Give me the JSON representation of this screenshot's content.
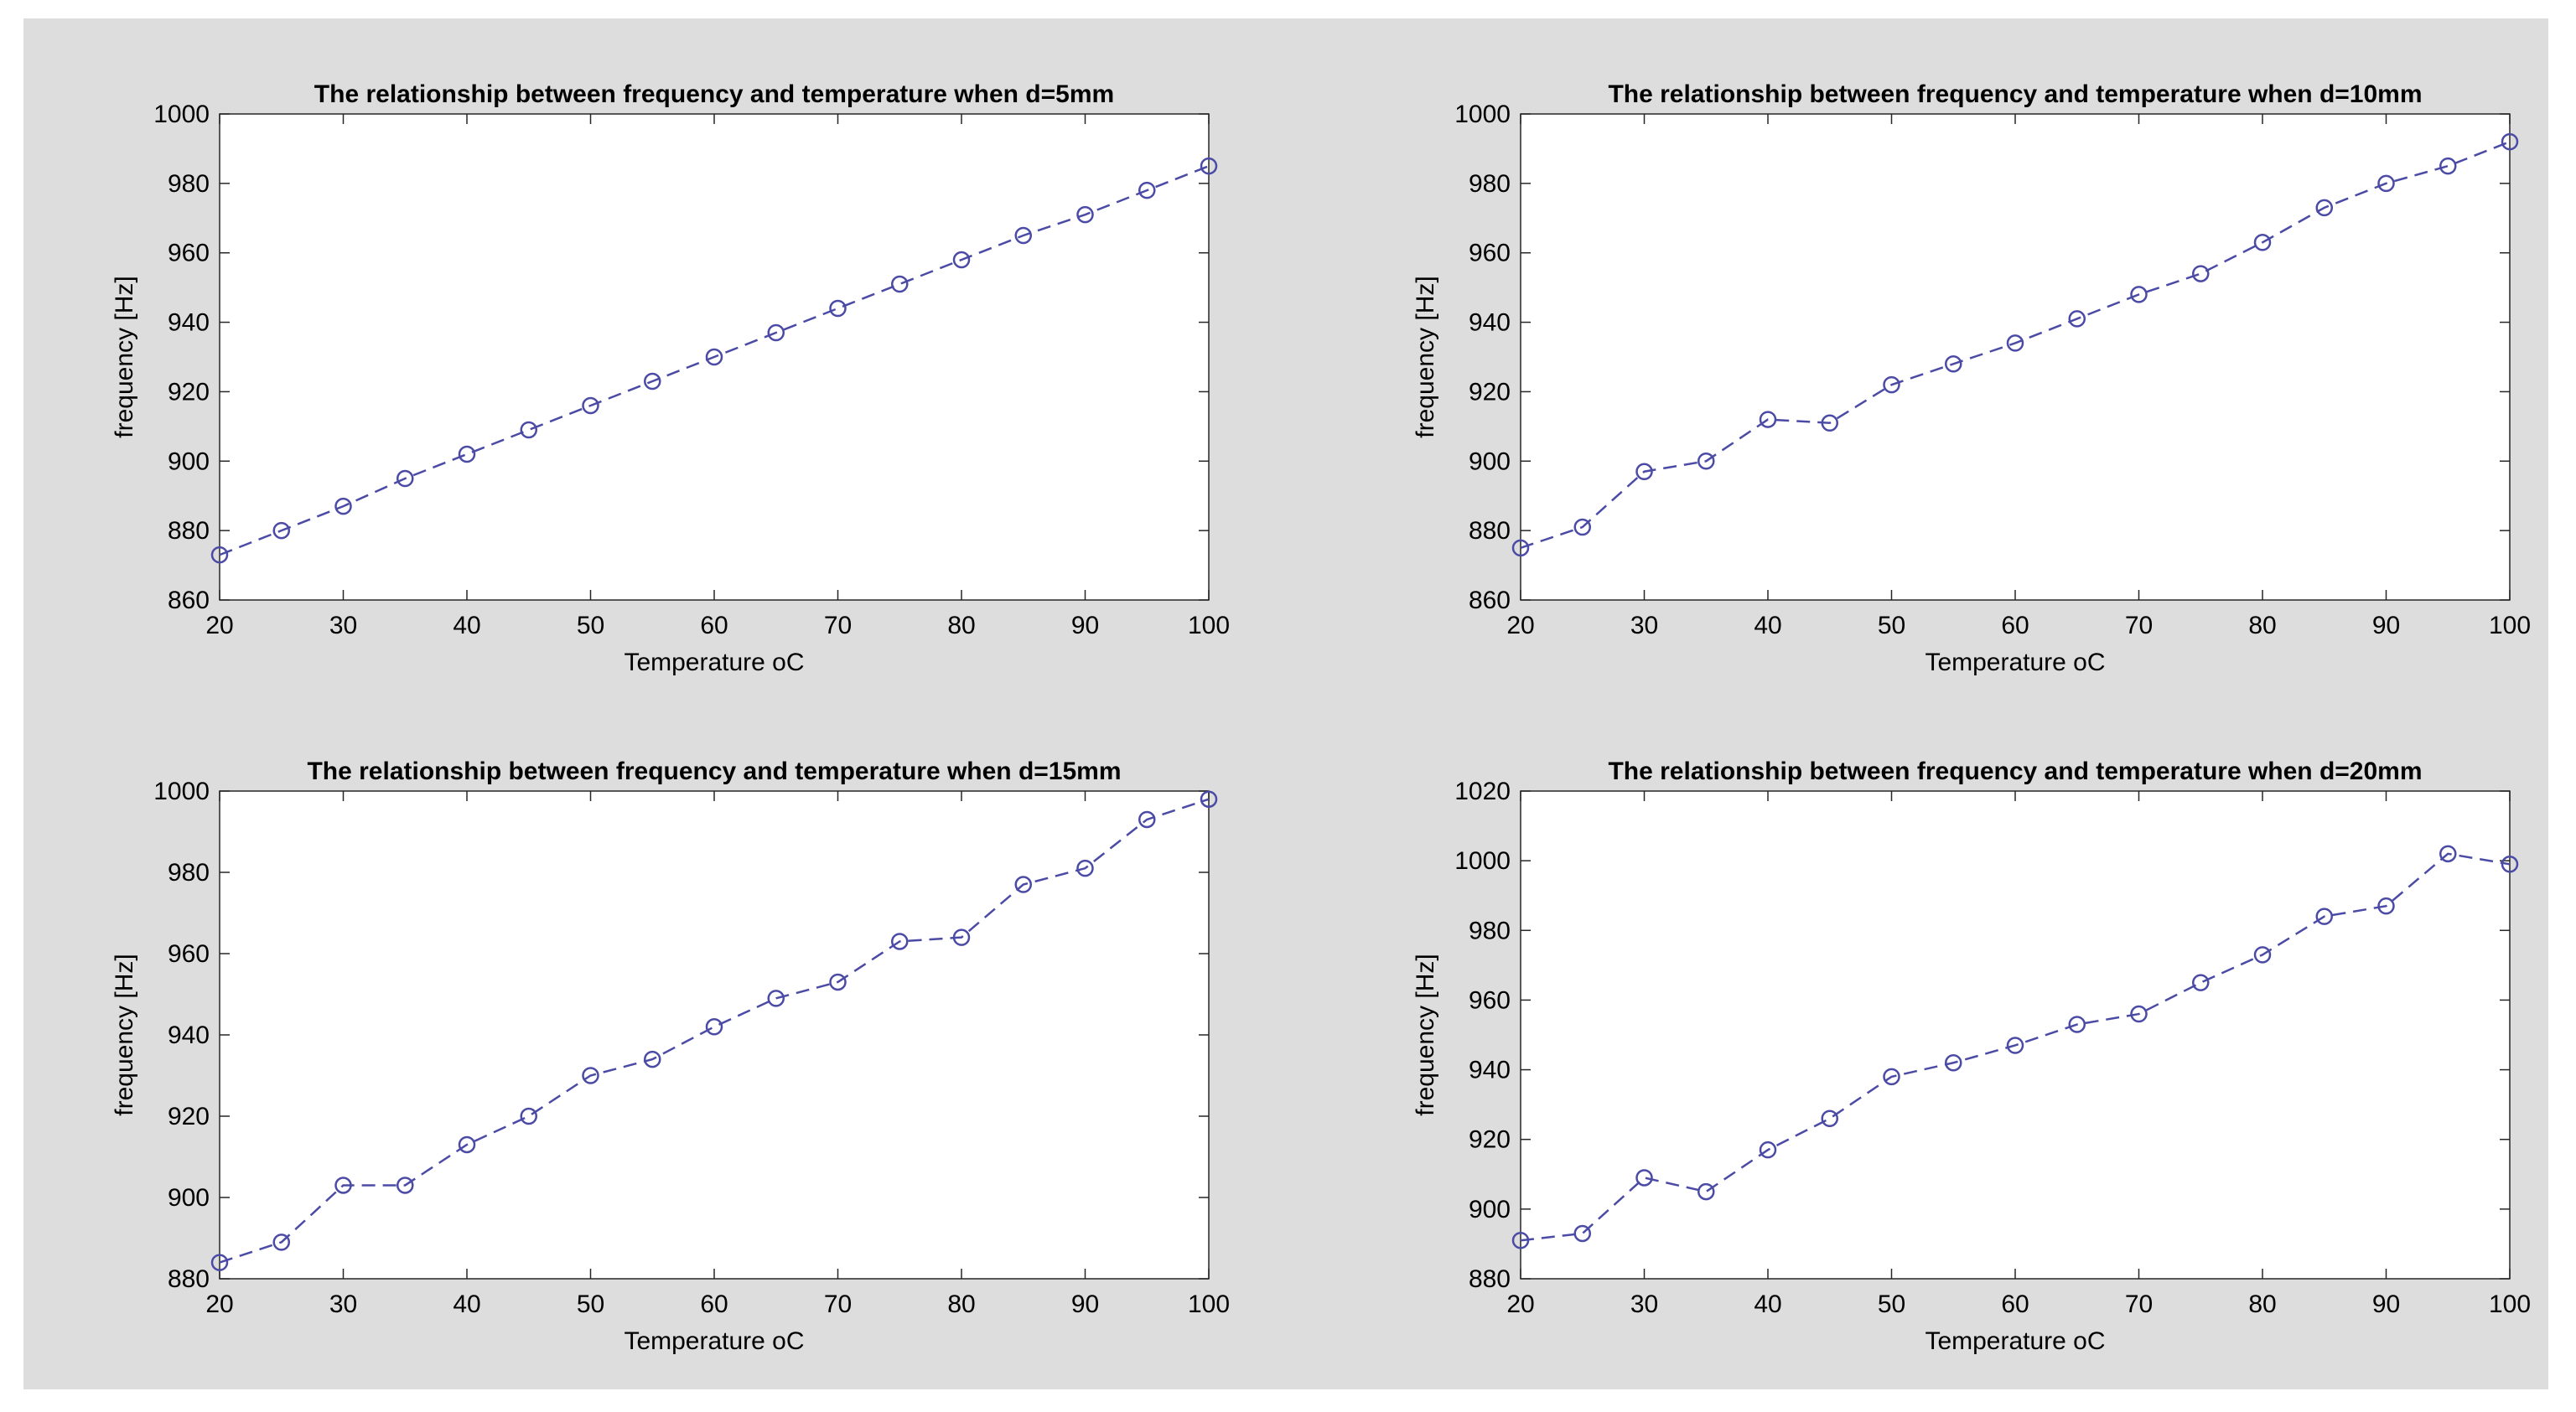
{
  "figure_background": "#dddddd",
  "series_color": "#4b4ba6",
  "chart_data": [
    {
      "type": "line",
      "title": "The relationship between frequency and temperature when d=5mm",
      "xlabel": "Temperature oC",
      "ylabel": "frequency [Hz]",
      "xlim": [
        20,
        100
      ],
      "ylim": [
        860,
        1000
      ],
      "xticks": [
        20,
        30,
        40,
        50,
        60,
        70,
        80,
        90,
        100
      ],
      "yticks": [
        860,
        880,
        900,
        920,
        940,
        960,
        980,
        1000
      ],
      "series": [
        {
          "name": "d=5mm",
          "marker": "circle",
          "line_style": "dashed",
          "x": [
            20,
            25,
            30,
            35,
            40,
            45,
            50,
            55,
            60,
            65,
            70,
            75,
            80,
            85,
            90,
            95,
            100
          ],
          "y": [
            873,
            880,
            887,
            895,
            902,
            909,
            916,
            923,
            930,
            937,
            944,
            951,
            958,
            965,
            971,
            978,
            985
          ]
        }
      ]
    },
    {
      "type": "line",
      "title": "The relationship between frequency and temperature when d=10mm",
      "xlabel": "Temperature oC",
      "ylabel": "frequency [Hz]",
      "xlim": [
        20,
        100
      ],
      "ylim": [
        860,
        1000
      ],
      "xticks": [
        20,
        30,
        40,
        50,
        60,
        70,
        80,
        90,
        100
      ],
      "yticks": [
        860,
        880,
        900,
        920,
        940,
        960,
        980,
        1000
      ],
      "series": [
        {
          "name": "d=10mm",
          "marker": "circle",
          "line_style": "dashed",
          "x": [
            20,
            25,
            30,
            35,
            40,
            45,
            50,
            55,
            60,
            65,
            70,
            75,
            80,
            85,
            90,
            95,
            100
          ],
          "y": [
            875,
            881,
            897,
            900,
            912,
            911,
            922,
            928,
            934,
            941,
            948,
            954,
            963,
            973,
            980,
            985,
            992
          ]
        }
      ]
    },
    {
      "type": "line",
      "title": "The relationship between frequency and temperature when d=15mm",
      "xlabel": "Temperature oC",
      "ylabel": "frequency [Hz]",
      "xlim": [
        20,
        100
      ],
      "ylim": [
        880,
        1000
      ],
      "xticks": [
        20,
        30,
        40,
        50,
        60,
        70,
        80,
        90,
        100
      ],
      "yticks": [
        880,
        900,
        920,
        940,
        960,
        980,
        1000
      ],
      "series": [
        {
          "name": "d=15mm",
          "marker": "circle",
          "line_style": "dashed",
          "x": [
            20,
            25,
            30,
            35,
            40,
            45,
            50,
            55,
            60,
            65,
            70,
            75,
            80,
            85,
            90,
            95,
            100
          ],
          "y": [
            884,
            889,
            903,
            903,
            913,
            920,
            930,
            934,
            942,
            949,
            953,
            963,
            964,
            977,
            981,
            993,
            998
          ]
        }
      ]
    },
    {
      "type": "line",
      "title": "The relationship between frequency and temperature when d=20mm",
      "xlabel": "Temperature oC",
      "ylabel": "frequency [Hz]",
      "xlim": [
        20,
        100
      ],
      "ylim": [
        880,
        1020
      ],
      "xticks": [
        20,
        30,
        40,
        50,
        60,
        70,
        80,
        90,
        100
      ],
      "yticks": [
        880,
        900,
        920,
        940,
        960,
        980,
        1000,
        1020
      ],
      "series": [
        {
          "name": "d=20mm",
          "marker": "circle",
          "line_style": "dashed",
          "x": [
            20,
            25,
            30,
            35,
            40,
            45,
            50,
            55,
            60,
            65,
            70,
            75,
            80,
            85,
            90,
            95,
            100
          ],
          "y": [
            891,
            893,
            909,
            905,
            917,
            926,
            938,
            942,
            947,
            953,
            956,
            965,
            973,
            984,
            987,
            1002,
            999
          ]
        }
      ]
    }
  ]
}
